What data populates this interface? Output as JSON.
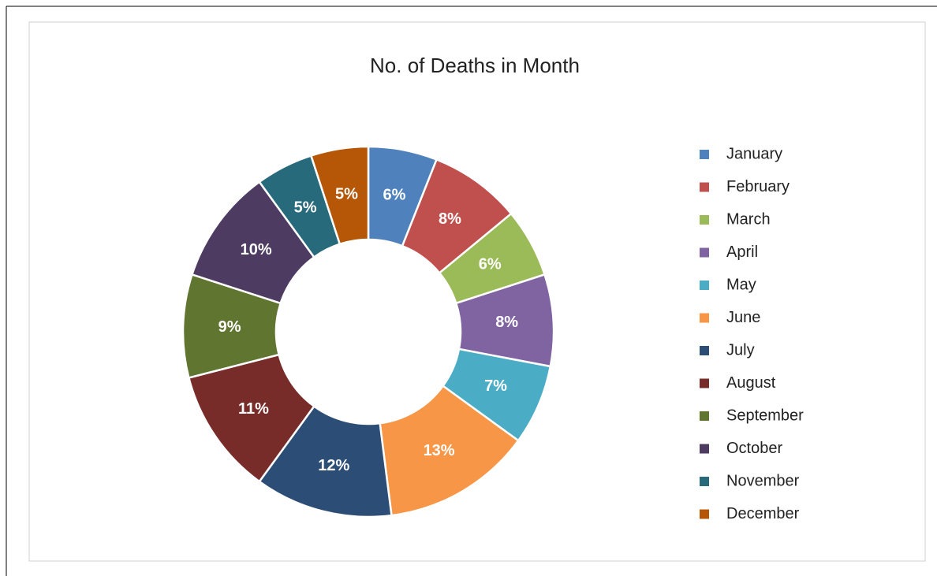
{
  "chart_data": {
    "type": "donut",
    "title": "No. of Deaths in Month",
    "categories": [
      "January",
      "February",
      "March",
      "April",
      "May",
      "June",
      "July",
      "August",
      "September",
      "October",
      "November",
      "December"
    ],
    "values": [
      6,
      8,
      6,
      8,
      7,
      13,
      12,
      11,
      9,
      10,
      5,
      5
    ],
    "value_labels": [
      "6%",
      "8%",
      "6%",
      "8%",
      "7%",
      "13%",
      "12%",
      "11%",
      "9%",
      "10%",
      "5%",
      "5%"
    ],
    "colors": [
      "#4f81bd",
      "#c0504d",
      "#9bbb59",
      "#8064a2",
      "#4bacc6",
      "#f79646",
      "#2c4d75",
      "#772c2a",
      "#5f7530",
      "#4d3b62",
      "#276a7c",
      "#b65708"
    ],
    "legend": "right"
  }
}
